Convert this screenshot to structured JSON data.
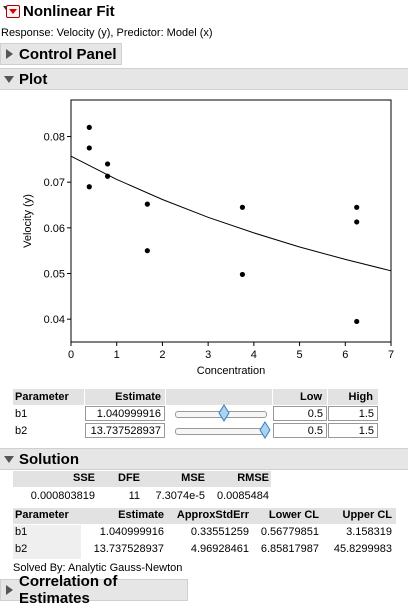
{
  "main_header": {
    "title": "Nonlinear Fit"
  },
  "response_line": "Response: Velocity (y), Predictor: Model (x)",
  "control_panel": {
    "title": "Control Panel"
  },
  "plot": {
    "title": "Plot"
  },
  "chart_data": {
    "type": "scatter",
    "xlabel": "Concentration",
    "ylabel": "Velocity (y)",
    "xlim": [
      0,
      7
    ],
    "ylim": [
      0.035,
      0.088
    ],
    "xticks": [
      "0",
      "1",
      "2",
      "3",
      "4",
      "5",
      "6",
      "7"
    ],
    "yticks": [
      "0.04",
      "0.05",
      "0.06",
      "0.07",
      "0.08"
    ],
    "points": [
      {
        "x": 0.4,
        "y": 0.082
      },
      {
        "x": 0.4,
        "y": 0.0775
      },
      {
        "x": 0.4,
        "y": 0.069
      },
      {
        "x": 0.8,
        "y": 0.074
      },
      {
        "x": 0.8,
        "y": 0.0713
      },
      {
        "x": 1.67,
        "y": 0.0652
      },
      {
        "x": 1.67,
        "y": 0.055
      },
      {
        "x": 3.75,
        "y": 0.0645
      },
      {
        "x": 3.75,
        "y": 0.0498
      },
      {
        "x": 6.25,
        "y": 0.0645
      },
      {
        "x": 6.25,
        "y": 0.0613
      },
      {
        "x": 6.25,
        "y": 0.0395
      }
    ],
    "curve": {
      "x": [
        0,
        1,
        2,
        3,
        4,
        5,
        6,
        7
      ],
      "y": [
        0.0757,
        0.0706,
        0.0662,
        0.0623,
        0.0589,
        0.0558,
        0.0531,
        0.0506
      ]
    }
  },
  "param_table": {
    "headers": {
      "parameter": "Parameter",
      "estimate": "Estimate",
      "low": "Low",
      "high": "High"
    },
    "rows": [
      {
        "name": "b1",
        "estimate": "1.040999916",
        "low": "0.5",
        "high": "1.5",
        "slider_fraction": 0.54
      },
      {
        "name": "b2",
        "estimate": "13.737528937",
        "low": "0.5",
        "high": "1.5",
        "slider_fraction": 1.0
      }
    ]
  },
  "solution": {
    "title": "Solution",
    "fit_headers": [
      "SSE",
      "DFE",
      "MSE",
      "RMSE"
    ],
    "fit_values": [
      "0.000803819",
      "11",
      "7.3074e-5",
      "0.0085484"
    ],
    "est_headers": [
      "Parameter",
      "Estimate",
      "ApproxStdErr",
      "Lower CL",
      "Upper CL"
    ],
    "est_rows": [
      [
        "b1",
        "1.040999916",
        "0.33551259",
        "0.56779851",
        "3.158319"
      ],
      [
        "b2",
        "13.737528937",
        "4.96928461",
        "6.85817987",
        "45.8299983"
      ]
    ],
    "solved_by": "Solved By:  Analytic Gauss-Newton"
  },
  "correlation": {
    "title": "Correlation of Estimates"
  },
  "colors": {
    "header_bg": "#e8e8e8",
    "table_header_bg": "#e2e2e2",
    "slider_handle": "#a9d3f0",
    "red_button": "#d00000"
  }
}
